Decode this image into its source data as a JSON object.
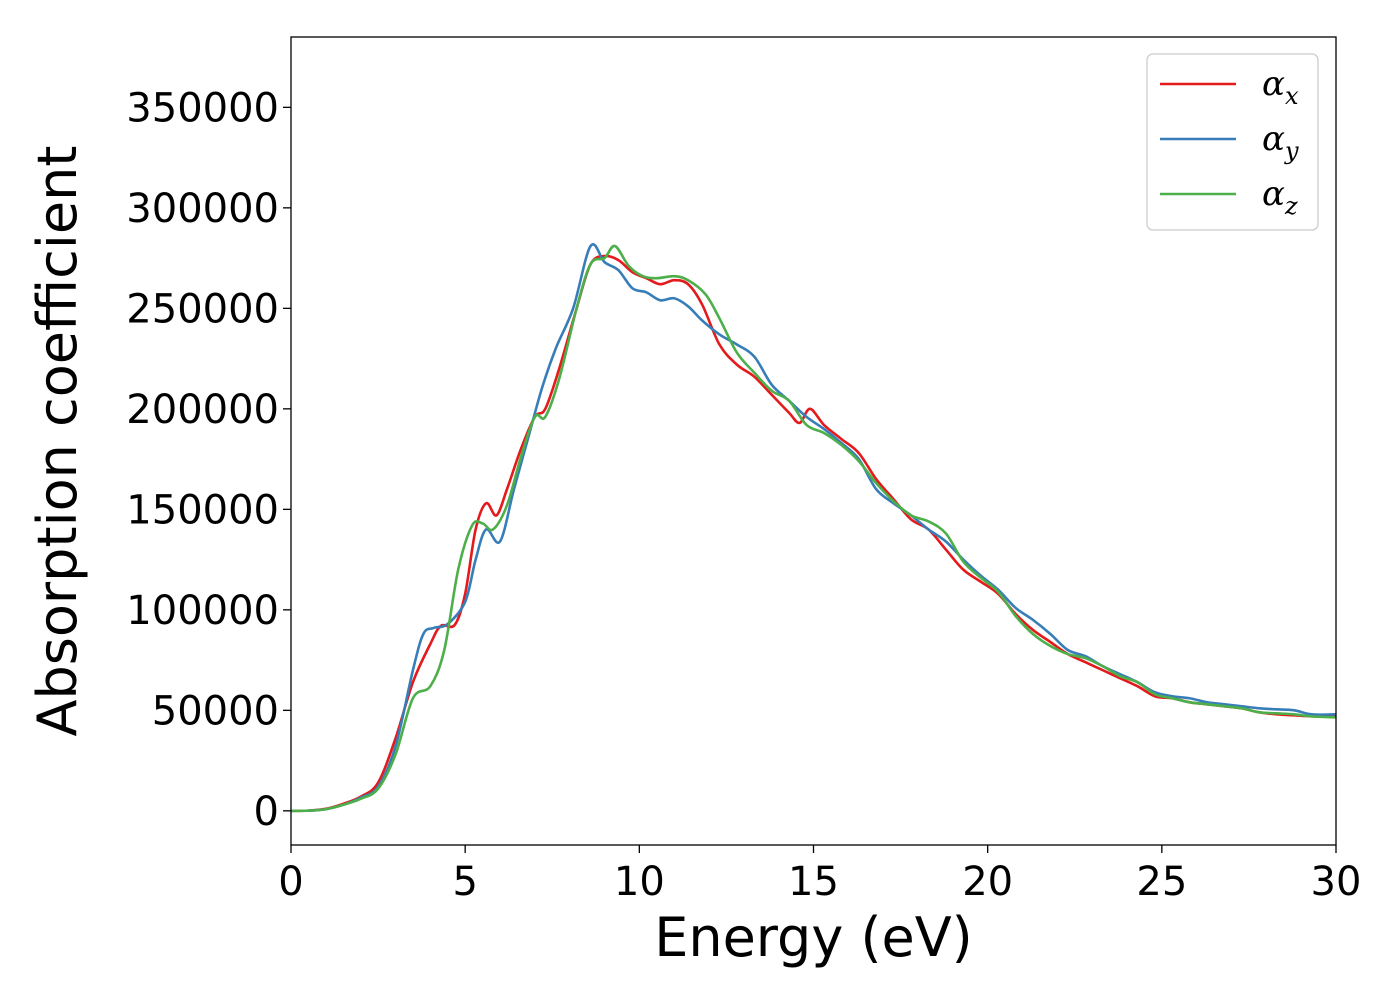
{
  "chart_data": {
    "type": "line",
    "title": "",
    "xlabel": "Energy (eV)",
    "ylabel": "Absorption coefficient",
    "xlim": [
      0,
      30
    ],
    "ylim": [
      -17000,
      385000
    ],
    "xticks": [
      0,
      5,
      10,
      15,
      20,
      25,
      30
    ],
    "yticks": [
      0,
      50000,
      100000,
      150000,
      200000,
      250000,
      300000,
      350000
    ],
    "grid": false,
    "legend_position": "top-right",
    "series": [
      {
        "name": "α",
        "subscript": "x",
        "color": "#e41a1c",
        "points": [
          [
            0,
            0
          ],
          [
            0.5,
            100
          ],
          [
            1.0,
            1000
          ],
          [
            1.5,
            3500
          ],
          [
            2.0,
            7000
          ],
          [
            2.5,
            14000
          ],
          [
            3.0,
            36000
          ],
          [
            3.5,
            64000
          ],
          [
            4.0,
            83000
          ],
          [
            4.3,
            92000
          ],
          [
            4.7,
            92500
          ],
          [
            5.0,
            108000
          ],
          [
            5.3,
            140000
          ],
          [
            5.6,
            153000
          ],
          [
            5.9,
            147000
          ],
          [
            6.2,
            160000
          ],
          [
            6.6,
            180000
          ],
          [
            7.0,
            196000
          ],
          [
            7.3,
            200000
          ],
          [
            7.7,
            220000
          ],
          [
            8.2,
            250000
          ],
          [
            8.6,
            272000
          ],
          [
            9.0,
            276000
          ],
          [
            9.4,
            274000
          ],
          [
            9.8,
            268000
          ],
          [
            10.2,
            265000
          ],
          [
            10.6,
            262000
          ],
          [
            11.0,
            264000
          ],
          [
            11.4,
            262000
          ],
          [
            11.8,
            252000
          ],
          [
            12.3,
            232000
          ],
          [
            12.8,
            222000
          ],
          [
            13.3,
            216000
          ],
          [
            13.8,
            207000
          ],
          [
            14.3,
            198000
          ],
          [
            14.6,
            193000
          ],
          [
            14.9,
            200000
          ],
          [
            15.3,
            192000
          ],
          [
            15.8,
            185000
          ],
          [
            16.3,
            178000
          ],
          [
            16.8,
            165000
          ],
          [
            17.3,
            155000
          ],
          [
            17.8,
            145000
          ],
          [
            18.3,
            140000
          ],
          [
            18.8,
            130000
          ],
          [
            19.3,
            120000
          ],
          [
            19.8,
            114000
          ],
          [
            20.3,
            108000
          ],
          [
            20.8,
            98000
          ],
          [
            21.3,
            90000
          ],
          [
            21.8,
            84000
          ],
          [
            22.3,
            78000
          ],
          [
            22.8,
            74000
          ],
          [
            23.3,
            70000
          ],
          [
            23.8,
            66000
          ],
          [
            24.3,
            62000
          ],
          [
            24.8,
            57000
          ],
          [
            25.3,
            56000
          ],
          [
            25.8,
            54000
          ],
          [
            26.3,
            53000
          ],
          [
            26.8,
            52000
          ],
          [
            27.3,
            51000
          ],
          [
            27.8,
            49000
          ],
          [
            28.3,
            48000
          ],
          [
            28.8,
            47500
          ],
          [
            29.3,
            47000
          ],
          [
            30.0,
            47000
          ]
        ]
      },
      {
        "name": "α",
        "subscript": "y",
        "color": "#377eb8",
        "points": [
          [
            0,
            0
          ],
          [
            0.5,
            100
          ],
          [
            1.0,
            800
          ],
          [
            1.5,
            3000
          ],
          [
            2.0,
            6500
          ],
          [
            2.5,
            12000
          ],
          [
            3.0,
            32000
          ],
          [
            3.5,
            70000
          ],
          [
            3.8,
            88000
          ],
          [
            4.1,
            91000
          ],
          [
            4.5,
            93000
          ],
          [
            5.0,
            104000
          ],
          [
            5.3,
            125000
          ],
          [
            5.6,
            140000
          ],
          [
            6.0,
            134000
          ],
          [
            6.4,
            160000
          ],
          [
            6.8,
            185000
          ],
          [
            7.2,
            210000
          ],
          [
            7.6,
            230000
          ],
          [
            8.1,
            250000
          ],
          [
            8.6,
            281000
          ],
          [
            9.0,
            273000
          ],
          [
            9.4,
            269000
          ],
          [
            9.8,
            260000
          ],
          [
            10.2,
            258000
          ],
          [
            10.6,
            254000
          ],
          [
            11.0,
            255000
          ],
          [
            11.4,
            251000
          ],
          [
            11.8,
            244000
          ],
          [
            12.3,
            237000
          ],
          [
            12.8,
            232000
          ],
          [
            13.3,
            226000
          ],
          [
            13.8,
            212000
          ],
          [
            14.3,
            204000
          ],
          [
            14.8,
            196000
          ],
          [
            15.3,
            190000
          ],
          [
            15.8,
            183000
          ],
          [
            16.3,
            175000
          ],
          [
            16.8,
            160000
          ],
          [
            17.3,
            153000
          ],
          [
            17.8,
            147000
          ],
          [
            18.3,
            140000
          ],
          [
            18.8,
            134000
          ],
          [
            19.3,
            125000
          ],
          [
            19.8,
            117000
          ],
          [
            20.3,
            110000
          ],
          [
            20.8,
            101000
          ],
          [
            21.3,
            95000
          ],
          [
            21.8,
            88000
          ],
          [
            22.3,
            80000
          ],
          [
            22.8,
            77000
          ],
          [
            23.3,
            72000
          ],
          [
            23.8,
            68000
          ],
          [
            24.3,
            64000
          ],
          [
            24.8,
            59000
          ],
          [
            25.3,
            57000
          ],
          [
            25.8,
            56000
          ],
          [
            26.3,
            54000
          ],
          [
            26.8,
            53000
          ],
          [
            27.3,
            52000
          ],
          [
            27.8,
            51000
          ],
          [
            28.3,
            50500
          ],
          [
            28.8,
            50000
          ],
          [
            29.3,
            48000
          ],
          [
            30.0,
            48000
          ]
        ]
      },
      {
        "name": "α",
        "subscript": "z",
        "color": "#4daf4a",
        "points": [
          [
            0,
            0
          ],
          [
            0.5,
            100
          ],
          [
            1.0,
            800
          ],
          [
            1.5,
            3000
          ],
          [
            2.0,
            6000
          ],
          [
            2.5,
            11000
          ],
          [
            3.0,
            28000
          ],
          [
            3.5,
            56000
          ],
          [
            4.0,
            62000
          ],
          [
            4.4,
            80000
          ],
          [
            4.8,
            120000
          ],
          [
            5.2,
            142000
          ],
          [
            5.5,
            143000
          ],
          [
            5.8,
            140000
          ],
          [
            6.2,
            152000
          ],
          [
            6.6,
            176000
          ],
          [
            7.0,
            196000
          ],
          [
            7.3,
            196000
          ],
          [
            7.7,
            215000
          ],
          [
            8.2,
            250000
          ],
          [
            8.6,
            272000
          ],
          [
            9.0,
            275000
          ],
          [
            9.3,
            281000
          ],
          [
            9.7,
            271000
          ],
          [
            10.1,
            266000
          ],
          [
            10.5,
            265000
          ],
          [
            11.0,
            266000
          ],
          [
            11.4,
            264000
          ],
          [
            11.9,
            257000
          ],
          [
            12.3,
            245000
          ],
          [
            12.8,
            228000
          ],
          [
            13.3,
            218000
          ],
          [
            13.8,
            209000
          ],
          [
            14.3,
            204000
          ],
          [
            14.8,
            192000
          ],
          [
            15.3,
            188000
          ],
          [
            15.8,
            182000
          ],
          [
            16.3,
            174000
          ],
          [
            16.8,
            163000
          ],
          [
            17.3,
            154000
          ],
          [
            17.8,
            147000
          ],
          [
            18.3,
            144000
          ],
          [
            18.8,
            138000
          ],
          [
            19.3,
            124000
          ],
          [
            19.8,
            116000
          ],
          [
            20.3,
            109000
          ],
          [
            20.8,
            97000
          ],
          [
            21.3,
            88000
          ],
          [
            21.8,
            82000
          ],
          [
            22.3,
            78000
          ],
          [
            22.8,
            76000
          ],
          [
            23.3,
            72000
          ],
          [
            23.8,
            67000
          ],
          [
            24.3,
            64000
          ],
          [
            24.8,
            58000
          ],
          [
            25.3,
            56000
          ],
          [
            25.8,
            54000
          ],
          [
            26.3,
            53000
          ],
          [
            26.8,
            52000
          ],
          [
            27.3,
            51000
          ],
          [
            27.8,
            49000
          ],
          [
            28.3,
            48500
          ],
          [
            28.8,
            48000
          ],
          [
            29.3,
            47000
          ],
          [
            30.0,
            46500
          ]
        ]
      }
    ]
  }
}
